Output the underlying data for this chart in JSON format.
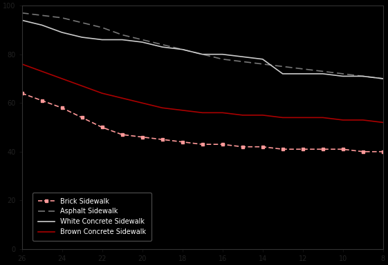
{
  "background_color": "#000000",
  "text_color": "#000000",
  "figsize": [
    5.61,
    3.84
  ],
  "dpi": 100,
  "xlim": [
    26,
    8
  ],
  "ylim": [
    0,
    100
  ],
  "x_distances": [
    26,
    25,
    24,
    23,
    22,
    21,
    20,
    19,
    18,
    17,
    16,
    15,
    14,
    13,
    12,
    11,
    10,
    9,
    8
  ],
  "asphalt": [
    97,
    96,
    95,
    93,
    91,
    88,
    86,
    84,
    82,
    80,
    78,
    77,
    76,
    75,
    74,
    73,
    72,
    71,
    70
  ],
  "white_concrete": [
    94,
    92,
    89,
    87,
    86,
    86,
    85,
    83,
    82,
    80,
    80,
    79,
    78,
    72,
    72,
    72,
    71,
    71,
    70
  ],
  "brown_concrete": [
    76,
    73,
    70,
    67,
    64,
    62,
    60,
    58,
    57,
    56,
    56,
    55,
    55,
    54,
    54,
    54,
    53,
    53,
    52
  ],
  "brick": [
    64,
    61,
    58,
    54,
    50,
    47,
    46,
    45,
    44,
    43,
    43,
    42,
    42,
    41,
    41,
    41,
    41,
    40,
    40
  ],
  "brick_color": "#ff9999",
  "asphalt_color": "#777777",
  "white_color": "#cccccc",
  "brown_color": "#aa0000",
  "legend_labels": [
    "Brick Sidewalk",
    "Asphalt Sidewalk",
    "White Concrete Sidewalk",
    "Brown Concrete Sidewalk"
  ]
}
